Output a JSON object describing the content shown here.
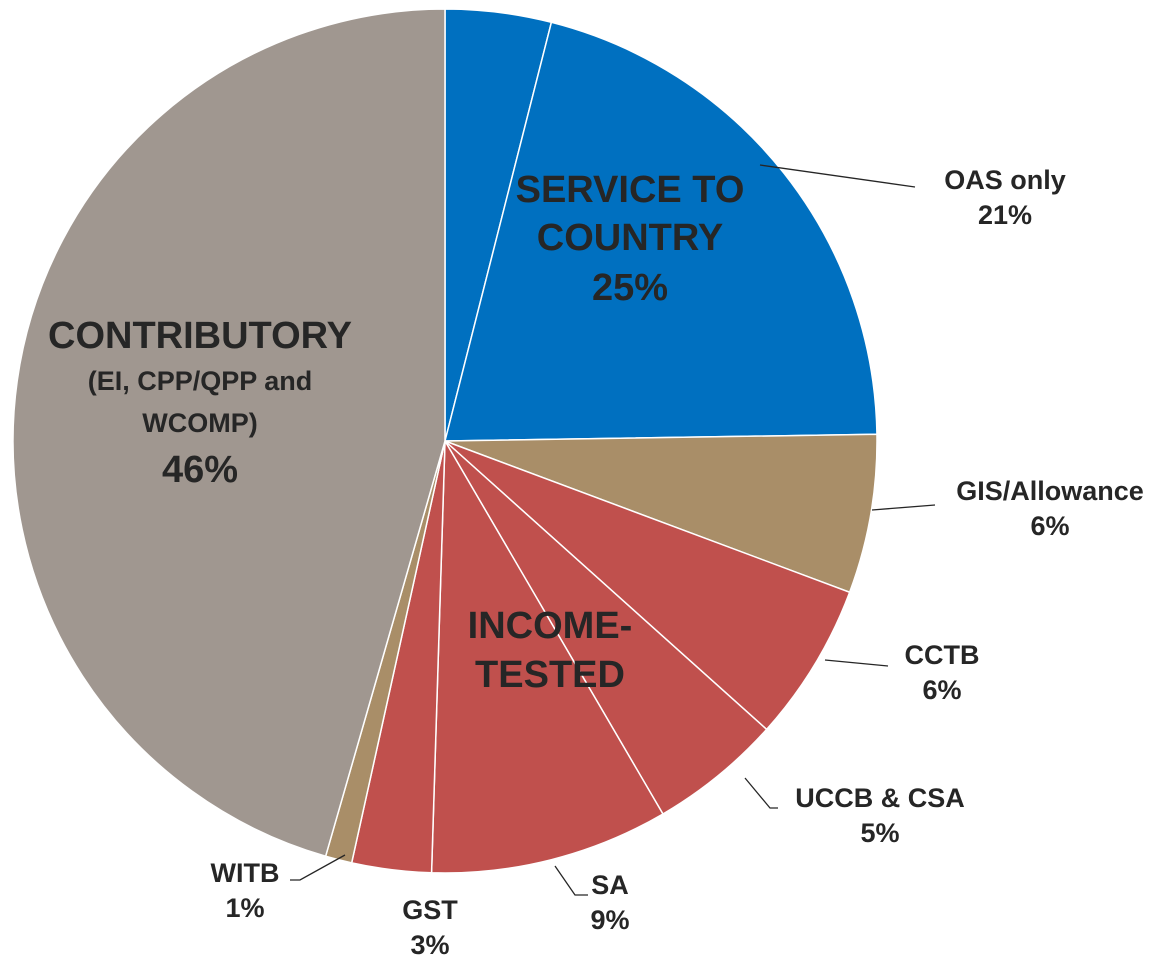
{
  "chart_data": {
    "type": "pie",
    "categories": [
      null,
      "OAS only",
      "GIS/Allowance",
      "CCTB",
      "UCCB & CSA",
      "SA",
      "GST",
      "WITB",
      "CONTRIBUTORY"
    ],
    "values": [
      4,
      21,
      6,
      6,
      5,
      9,
      3,
      1,
      46
    ],
    "value_labels": [
      null,
      "21%",
      "6%",
      "6%",
      "5%",
      "9%",
      "3%",
      "1%",
      "46%"
    ],
    "colors": [
      "#0070c0",
      "#0070c0",
      "#a98e68",
      "#c0504d",
      "#c0504d",
      "#c0504d",
      "#c0504d",
      "#a98e68",
      "#a09790"
    ],
    "annotations": [
      {
        "lines": [
          "SERVICE TO",
          "COUNTRY"
        ],
        "value": 25,
        "value_label": "25%"
      },
      {
        "lines": [
          "INCOME-",
          "TESTED"
        ]
      },
      {
        "lines": [
          "(EI, CPP/QPP and",
          "WCOMP)"
        ]
      }
    ]
  }
}
